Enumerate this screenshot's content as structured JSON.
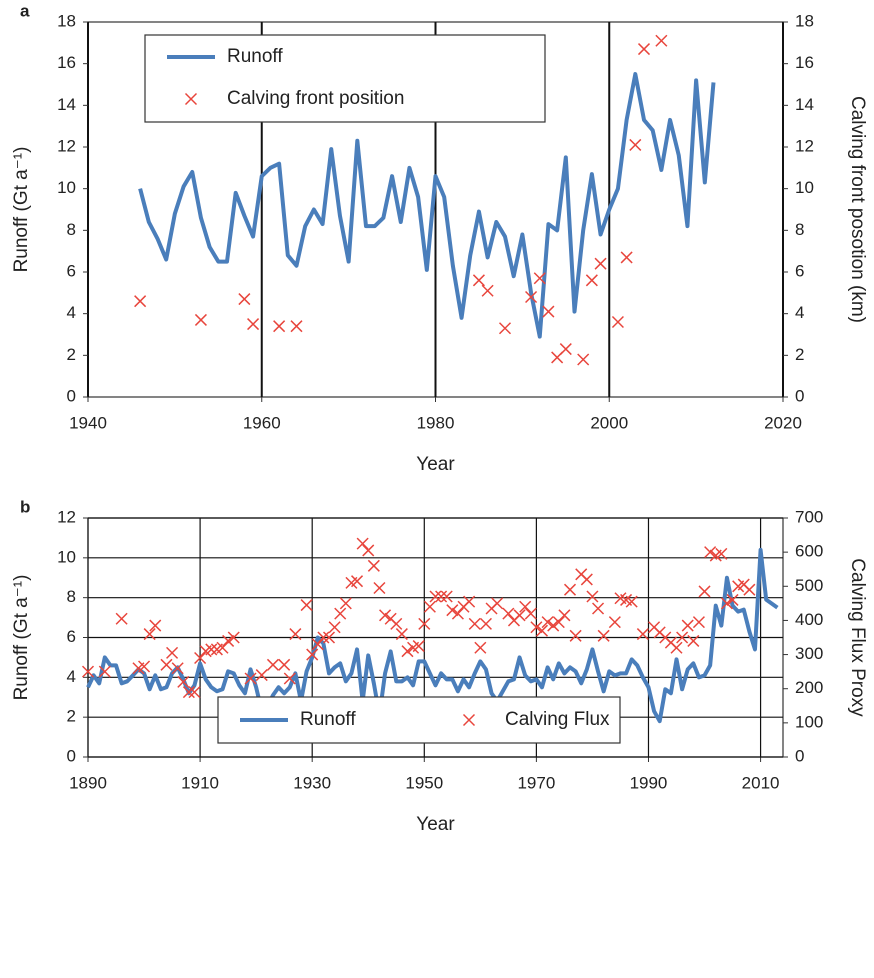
{
  "chart_data": [
    {
      "type": "line",
      "panel_label": "a",
      "xlabel": "Year",
      "ylabel": "Runoff  (Gt a⁻¹)",
      "y2label": "Calving front posotion  (km)",
      "xlim": [
        1940,
        2020
      ],
      "xticks": [
        1940,
        1960,
        1980,
        2000,
        2020
      ],
      "ylim": [
        0,
        18
      ],
      "yticks": [
        0,
        2,
        4,
        6,
        8,
        10,
        12,
        14,
        16,
        18
      ],
      "y2lim": [
        0,
        18
      ],
      "y2ticks": [
        0,
        2,
        4,
        6,
        8,
        10,
        12,
        14,
        16,
        18
      ],
      "grid": "x",
      "legend": "upper left",
      "series": [
        {
          "name": "Runoff",
          "color": "#4a7ebb",
          "style": "line",
          "x": [
            1946,
            1947,
            1948,
            1949,
            1950,
            1951,
            1952,
            1953,
            1954,
            1955,
            1956,
            1957,
            1958,
            1959,
            1960,
            1961,
            1962,
            1963,
            1964,
            1965,
            1966,
            1967,
            1968,
            1969,
            1970,
            1971,
            1972,
            1973,
            1974,
            1975,
            1976,
            1977,
            1978,
            1979,
            1980,
            1981,
            1982,
            1983,
            1984,
            1985,
            1986,
            1987,
            1988,
            1989,
            1990,
            1991,
            1992,
            1993,
            1994,
            1995,
            1996,
            1997,
            1998,
            1999,
            2000,
            2001,
            2002,
            2003,
            2004,
            2005,
            2006,
            2007,
            2008,
            2009,
            2010,
            2011,
            2012
          ],
          "values": [
            10.0,
            8.4,
            7.6,
            6.6,
            8.8,
            10.1,
            10.8,
            8.6,
            7.2,
            6.5,
            6.5,
            9.8,
            8.7,
            7.7,
            10.6,
            11.0,
            11.2,
            6.8,
            6.3,
            8.2,
            9.0,
            8.3,
            11.9,
            8.7,
            6.5,
            12.3,
            8.2,
            8.2,
            8.6,
            10.6,
            8.4,
            11.0,
            9.6,
            6.1,
            10.6,
            9.6,
            6.3,
            3.8,
            6.8,
            8.9,
            6.7,
            8.4,
            7.7,
            5.8,
            7.8,
            5.0,
            2.9,
            8.3,
            8.0,
            11.5,
            4.1,
            8.0,
            10.7,
            7.8,
            9.0,
            10.0,
            13.3,
            15.5,
            13.3,
            12.8,
            10.9,
            13.3,
            11.6,
            8.2,
            15.2,
            10.3,
            15.1
          ]
        },
        {
          "name": "Calving front position",
          "color": "#e8453c",
          "style": "x-marker",
          "axis": "y2",
          "x": [
            1946,
            1953,
            1958,
            1959,
            1962,
            1964,
            1985,
            1986,
            1988,
            1991,
            1992,
            1993,
            1994,
            1995,
            1997,
            1998,
            1999,
            2001,
            2002,
            2003,
            2004,
            2006
          ],
          "values": [
            4.6,
            3.7,
            4.7,
            3.5,
            3.4,
            3.4,
            5.6,
            5.1,
            3.3,
            4.8,
            5.7,
            4.1,
            1.9,
            2.3,
            1.8,
            5.6,
            6.4,
            3.6,
            6.7,
            12.1,
            16.7,
            17.1
          ]
        }
      ]
    },
    {
      "type": "line",
      "panel_label": "b",
      "xlabel": "Year",
      "ylabel": "Runoff  (Gt a⁻¹)",
      "y2label": "Calving Flux Proxy",
      "xlim": [
        1890,
        2014
      ],
      "xticks": [
        1890,
        1910,
        1930,
        1950,
        1970,
        1990,
        2010
      ],
      "ylim": [
        0,
        12
      ],
      "yticks": [
        0,
        2,
        4,
        6,
        8,
        10,
        12
      ],
      "y2lim": [
        0,
        700
      ],
      "y2ticks": [
        0,
        100,
        200,
        300,
        400,
        500,
        600,
        700
      ],
      "grid": "both",
      "legend": "lower center",
      "series": [
        {
          "name": "Runoff",
          "color": "#4a7ebb",
          "style": "line",
          "x": [
            1890,
            1891,
            1892,
            1893,
            1894,
            1895,
            1896,
            1897,
            1898,
            1899,
            1900,
            1901,
            1902,
            1903,
            1904,
            1905,
            1906,
            1907,
            1908,
            1909,
            1910,
            1911,
            1912,
            1913,
            1914,
            1915,
            1916,
            1917,
            1918,
            1919,
            1920,
            1921,
            1922,
            1923,
            1924,
            1925,
            1926,
            1927,
            1928,
            1929,
            1930,
            1931,
            1932,
            1933,
            1934,
            1935,
            1936,
            1937,
            1938,
            1939,
            1940,
            1941,
            1942,
            1943,
            1944,
            1945,
            1946,
            1947,
            1948,
            1949,
            1950,
            1951,
            1952,
            1953,
            1954,
            1955,
            1956,
            1957,
            1958,
            1959,
            1960,
            1961,
            1962,
            1963,
            1964,
            1965,
            1966,
            1967,
            1968,
            1969,
            1970,
            1971,
            1972,
            1973,
            1974,
            1975,
            1976,
            1977,
            1978,
            1979,
            1980,
            1981,
            1982,
            1983,
            1984,
            1985,
            1986,
            1987,
            1988,
            1989,
            1990,
            1991,
            1992,
            1993,
            1994,
            1995,
            1996,
            1997,
            1998,
            1999,
            2000,
            2001,
            2002,
            2003,
            2004,
            2005,
            2006,
            2007,
            2008,
            2009,
            2010,
            2011,
            2012,
            2013
          ],
          "values": [
            3.5,
            4.1,
            3.7,
            5.0,
            4.6,
            4.6,
            3.7,
            3.8,
            4.1,
            4.4,
            4.2,
            3.4,
            4.1,
            3.4,
            3.5,
            4.2,
            4.5,
            3.9,
            3.2,
            3.6,
            4.7,
            3.9,
            3.5,
            3.3,
            3.4,
            4.3,
            4.2,
            3.6,
            3.2,
            4.4,
            3.5,
            2.3,
            2.5,
            3.1,
            3.5,
            3.2,
            3.5,
            4.2,
            2.8,
            4.3,
            5.0,
            6.0,
            5.7,
            4.2,
            4.5,
            4.7,
            3.8,
            4.2,
            5.4,
            2.8,
            5.1,
            3.7,
            2.1,
            4.2,
            5.3,
            3.8,
            3.8,
            4.0,
            3.6,
            4.8,
            4.8,
            4.2,
            3.6,
            4.2,
            3.9,
            3.9,
            3.3,
            3.9,
            3.5,
            4.2,
            4.8,
            4.4,
            3.2,
            2.8,
            3.3,
            3.8,
            3.9,
            5.0,
            4.1,
            3.8,
            3.9,
            3.5,
            4.5,
            3.9,
            4.7,
            4.2,
            4.5,
            4.3,
            3.7,
            4.4,
            5.4,
            4.3,
            3.3,
            4.3,
            4.1,
            4.2,
            4.2,
            4.9,
            4.6,
            4.0,
            3.5,
            2.3,
            1.8,
            3.4,
            3.2,
            4.9,
            3.4,
            4.4,
            4.7,
            4.0,
            4.1,
            4.6,
            7.6,
            6.6,
            9.0,
            7.6,
            7.3,
            7.4,
            6.3,
            5.4,
            10.4,
            7.9,
            7.7,
            7.5
          ]
        },
        {
          "name": "Calving Flux",
          "color": "#e8453c",
          "style": "x-marker",
          "axis": "y2",
          "x": [
            1890,
            1893,
            1896,
            1899,
            1900,
            1901,
            1902,
            1904,
            1905,
            1906,
            1907,
            1908,
            1909,
            1910,
            1911,
            1912,
            1913,
            1914,
            1915,
            1916,
            1919,
            1921,
            1923,
            1925,
            1926,
            1927,
            1929,
            1930,
            1931,
            1932,
            1933,
            1934,
            1935,
            1936,
            1937,
            1938,
            1939,
            1940,
            1941,
            1942,
            1943,
            1944,
            1945,
            1946,
            1947,
            1948,
            1949,
            1950,
            1951,
            1952,
            1953,
            1954,
            1955,
            1956,
            1957,
            1958,
            1959,
            1960,
            1961,
            1962,
            1963,
            1965,
            1966,
            1967,
            1968,
            1969,
            1970,
            1971,
            1972,
            1973,
            1974,
            1975,
            1976,
            1977,
            1978,
            1979,
            1980,
            1981,
            1982,
            1984,
            1985,
            1986,
            1987,
            1989,
            1991,
            1992,
            1993,
            1994,
            1995,
            1996,
            1997,
            1998,
            1999,
            2000,
            2001,
            2002,
            2003,
            2004,
            2005,
            2006,
            2007,
            2008
          ],
          "values": [
            250,
            250,
            405,
            260,
            265,
            360,
            385,
            270,
            305,
            260,
            220,
            190,
            190,
            290,
            310,
            315,
            315,
            320,
            340,
            350,
            230,
            240,
            270,
            270,
            230,
            360,
            445,
            300,
            330,
            350,
            350,
            380,
            420,
            450,
            510,
            515,
            625,
            605,
            560,
            495,
            415,
            405,
            390,
            360,
            310,
            320,
            325,
            390,
            440,
            470,
            470,
            470,
            430,
            420,
            440,
            455,
            390,
            320,
            390,
            435,
            450,
            420,
            400,
            415,
            440,
            420,
            380,
            370,
            395,
            385,
            395,
            415,
            490,
            355,
            535,
            520,
            470,
            435,
            355,
            395,
            465,
            460,
            455,
            360,
            380,
            365,
            350,
            335,
            320,
            350,
            385,
            340,
            395,
            485,
            600,
            590,
            595,
            450,
            460,
            500,
            505,
            490
          ]
        }
      ]
    }
  ]
}
